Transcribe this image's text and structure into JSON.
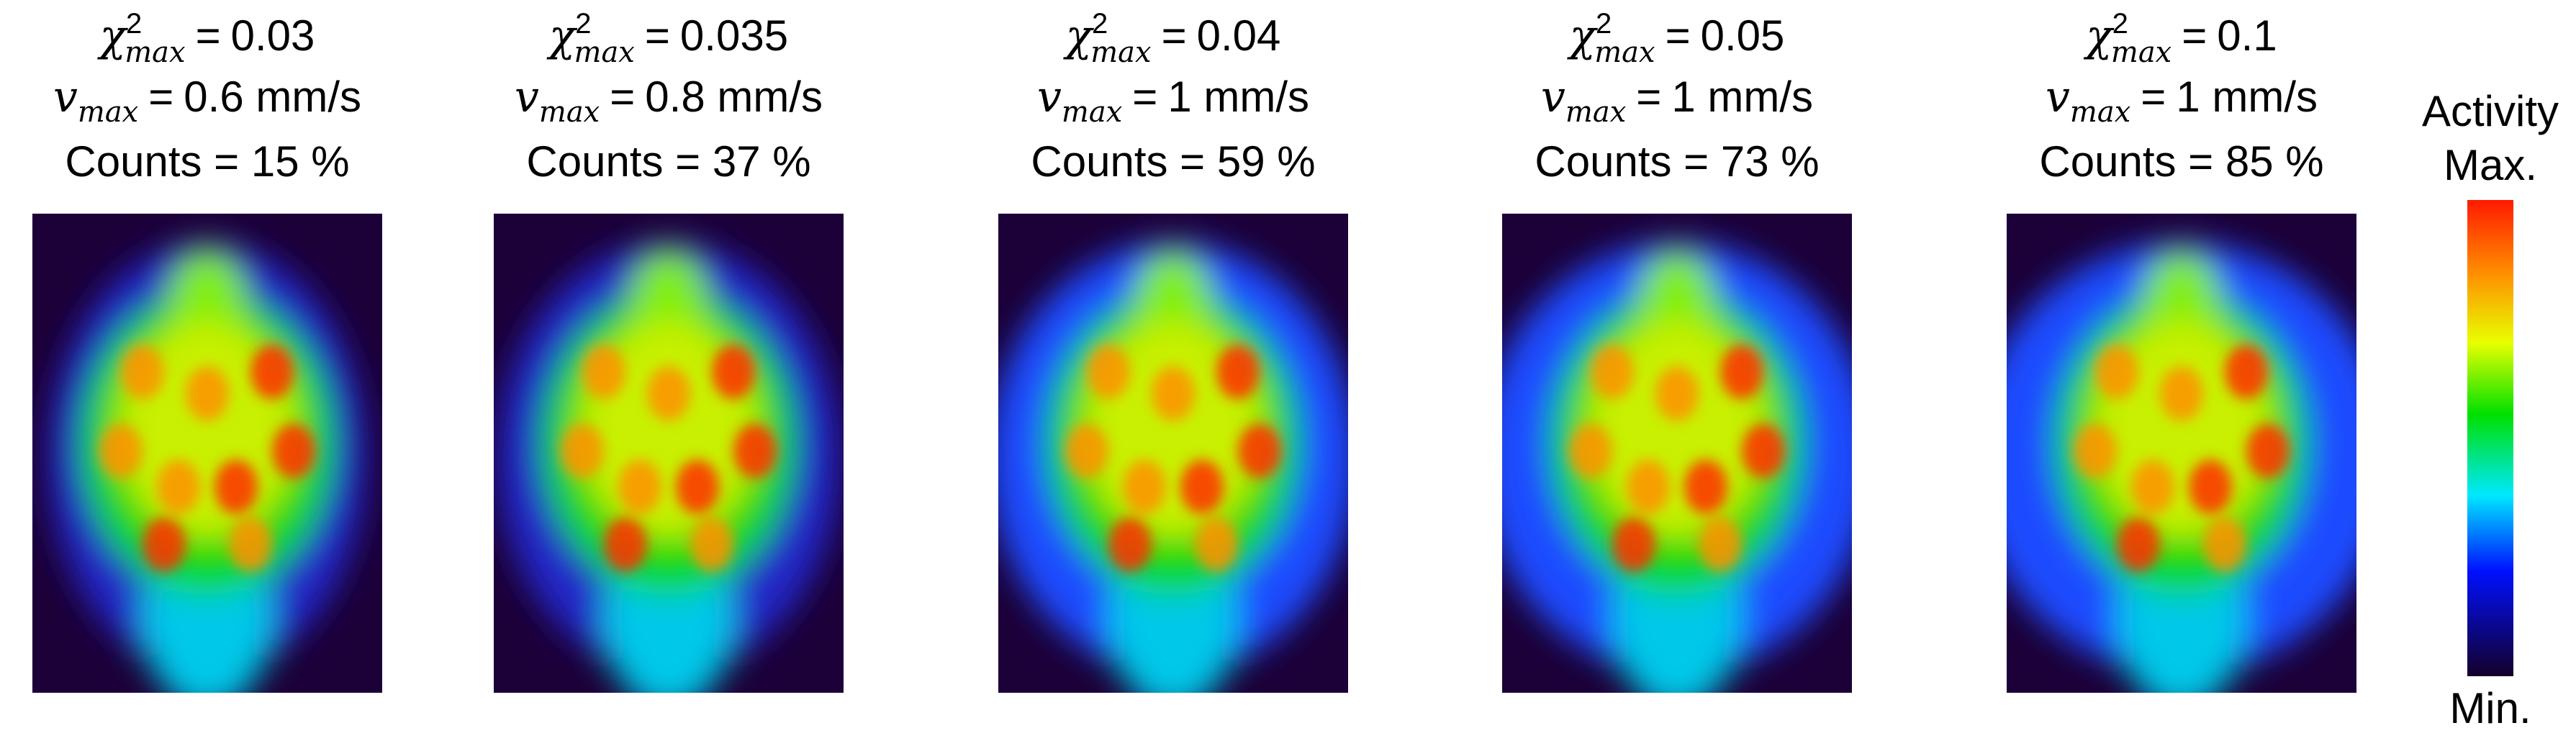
{
  "panels": [
    {
      "chi2_max": "0.03",
      "v_max": "0.6 mm/s",
      "counts": "Counts = 15 %"
    },
    {
      "chi2_max": "0.035",
      "v_max": "0.8 mm/s",
      "counts": "Counts = 37 %"
    },
    {
      "chi2_max": "0.04",
      "v_max": "1 mm/s",
      "counts": "Counts = 59 %"
    },
    {
      "chi2_max": "0.05",
      "v_max": "1 mm/s",
      "counts": "Counts = 73 %"
    },
    {
      "chi2_max": "0.1",
      "v_max": "1 mm/s",
      "counts": "Counts = 85 %"
    }
  ],
  "symbols": {
    "chi": "χ",
    "superscript": "2",
    "subscript": "max",
    "v": "v",
    "equals": "="
  },
  "colorbar": {
    "title": "Activity",
    "max_label": "Max.",
    "min_label": "Min."
  }
}
